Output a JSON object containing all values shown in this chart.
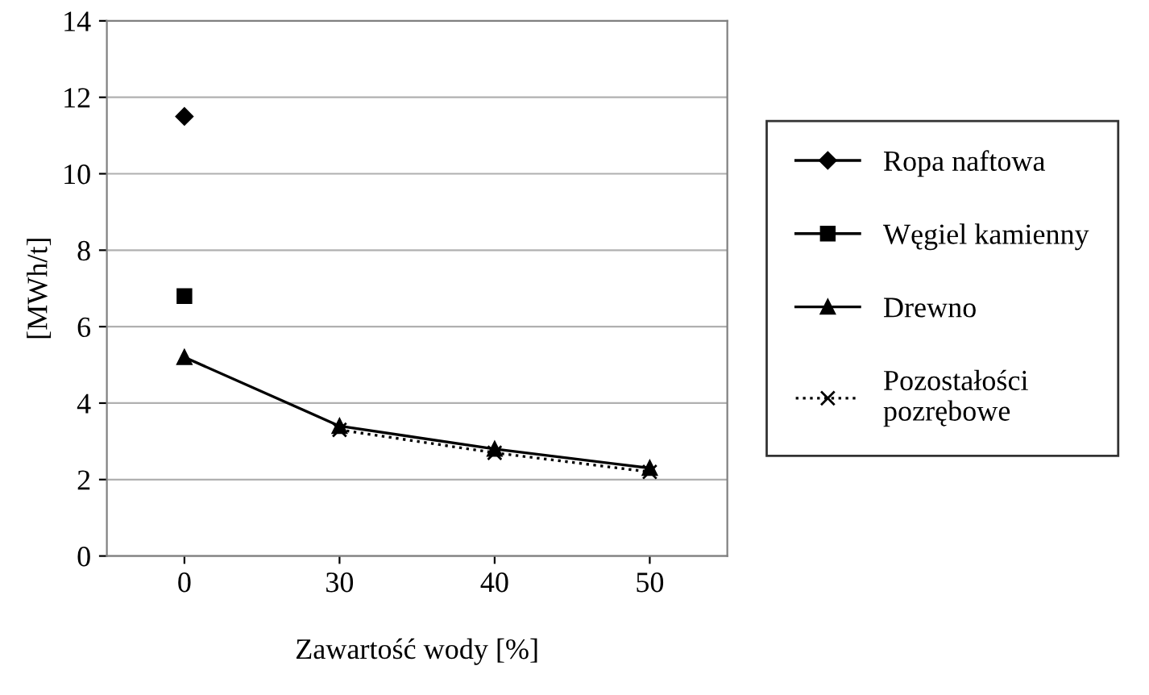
{
  "chart_data": {
    "type": "line",
    "xlabel": "Zawartość wody [%]",
    "ylabel": "[MWh/t]",
    "categories": [
      "0",
      "30",
      "40",
      "50"
    ],
    "series": [
      {
        "name": "Ropa naftowa",
        "color": "#000000",
        "marker": "diamond",
        "line_style": "solid",
        "values": [
          11.5,
          null,
          null,
          null
        ]
      },
      {
        "name": "Węgiel kamienny",
        "color": "#000000",
        "marker": "square",
        "line_style": "solid",
        "values": [
          6.8,
          null,
          null,
          null
        ]
      },
      {
        "name": "Drewno",
        "color": "#000000",
        "marker": "triangle",
        "line_style": "solid",
        "values": [
          5.2,
          3.4,
          2.8,
          2.3
        ]
      },
      {
        "name": "Pozostałości pozrębowe",
        "color": "#000000",
        "marker": "cross",
        "line_style": "dotted",
        "values": [
          null,
          3.3,
          2.7,
          2.2
        ]
      }
    ],
    "ylim": [
      0,
      14
    ],
    "yticks": [
      0,
      2,
      4,
      6,
      8,
      10,
      12,
      14
    ],
    "grid": "y",
    "legend": "right"
  }
}
